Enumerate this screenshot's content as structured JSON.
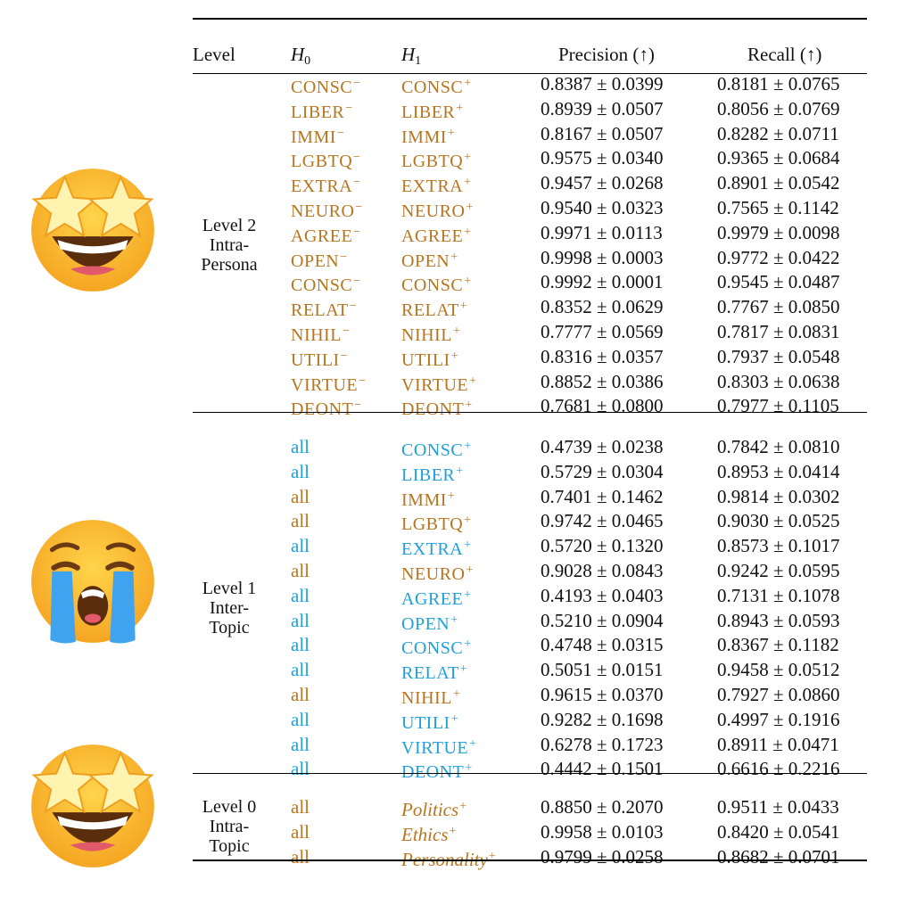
{
  "header": {
    "level": "Level",
    "h0": "H",
    "h0_sub": "0",
    "h1": "H",
    "h1_sub": "1",
    "precision": "Precision (↑)",
    "recall": "Recall (↑)"
  },
  "colors": {
    "brown": "#b8751f",
    "blue": "#1fa0dd"
  },
  "groups": [
    {
      "label_lines": [
        "Level 2",
        "Intra-",
        "Persona"
      ],
      "emoji": "star-struck-emoji",
      "rows": [
        {
          "h0": "CONSC",
          "h0_sup": "−",
          "h0_color": "brown",
          "h1": "CONSC",
          "h1_sup": "+",
          "h1_color": "brown",
          "precision": "0.8387 ± 0.0399",
          "recall": "0.8181 ± 0.0765"
        },
        {
          "h0": "LIBER",
          "h0_sup": "−",
          "h0_color": "brown",
          "h1": "LIBER",
          "h1_sup": "+",
          "h1_color": "brown",
          "precision": "0.8939 ± 0.0507",
          "recall": "0.8056 ± 0.0769"
        },
        {
          "h0": "IMMI",
          "h0_sup": "−",
          "h0_color": "brown",
          "h1": "IMMI",
          "h1_sup": "+",
          "h1_color": "brown",
          "precision": "0.8167 ± 0.0507",
          "recall": "0.8282 ± 0.0711"
        },
        {
          "h0": "LGBTQ",
          "h0_sup": "−",
          "h0_color": "brown",
          "h1": "LGBTQ",
          "h1_sup": "+",
          "h1_color": "brown",
          "precision": "0.9575 ± 0.0340",
          "recall": "0.9365 ± 0.0684"
        },
        {
          "h0": "EXTRA",
          "h0_sup": "−",
          "h0_color": "brown",
          "h1": "EXTRA",
          "h1_sup": "+",
          "h1_color": "brown",
          "precision": "0.9457 ± 0.0268",
          "recall": "0.8901 ± 0.0542"
        },
        {
          "h0": "NEURO",
          "h0_sup": "−",
          "h0_color": "brown",
          "h1": "NEURO",
          "h1_sup": "+",
          "h1_color": "brown",
          "precision": "0.9540 ± 0.0323",
          "recall": "0.7565 ± 0.1142"
        },
        {
          "h0": "AGREE",
          "h0_sup": "−",
          "h0_color": "brown",
          "h1": "AGREE",
          "h1_sup": "+",
          "h1_color": "brown",
          "precision": "0.9971 ± 0.0113",
          "recall": "0.9979 ± 0.0098"
        },
        {
          "h0": "OPEN",
          "h0_sup": "−",
          "h0_color": "brown",
          "h1": "OPEN",
          "h1_sup": "+",
          "h1_color": "brown",
          "precision": "0.9998 ± 0.0003",
          "recall": "0.9772 ± 0.0422"
        },
        {
          "h0": "CONSC",
          "h0_sup": "−",
          "h0_color": "brown",
          "h1": "CONSC",
          "h1_sup": "+",
          "h1_color": "brown",
          "precision": "0.9992 ± 0.0001",
          "recall": "0.9545 ± 0.0487"
        },
        {
          "h0": "RELAT",
          "h0_sup": "−",
          "h0_color": "brown",
          "h1": "RELAT",
          "h1_sup": "+",
          "h1_color": "brown",
          "precision": "0.8352 ± 0.0629",
          "recall": "0.7767 ± 0.0850"
        },
        {
          "h0": "NIHIL",
          "h0_sup": "−",
          "h0_color": "brown",
          "h1": "NIHIL",
          "h1_sup": "+",
          "h1_color": "brown",
          "precision": "0.7777 ± 0.0569",
          "recall": "0.7817 ± 0.0831"
        },
        {
          "h0": "UTILI",
          "h0_sup": "−",
          "h0_color": "brown",
          "h1": "UTILI",
          "h1_sup": "+",
          "h1_color": "brown",
          "precision": "0.8316 ± 0.0357",
          "recall": "0.7937 ± 0.0548"
        },
        {
          "h0": "VIRTUE",
          "h0_sup": "−",
          "h0_color": "brown",
          "h1": "VIRTUE",
          "h1_sup": "+",
          "h1_color": "brown",
          "precision": "0.8852 ± 0.0386",
          "recall": "0.8303 ± 0.0638"
        },
        {
          "h0": "DEONT",
          "h0_sup": "−",
          "h0_color": "brown",
          "h1": "DEONT",
          "h1_sup": "+",
          "h1_color": "brown",
          "precision": "0.7681 ± 0.0800",
          "recall": "0.7977 ± 0.1105"
        }
      ]
    },
    {
      "label_lines": [
        "Level 1",
        "Inter-",
        "Topic"
      ],
      "emoji": "loudly-crying-emoji",
      "rows": [
        {
          "h0": "all",
          "h0_sup": "",
          "h0_color": "blue",
          "h1": "CONSC",
          "h1_sup": "+",
          "h1_color": "blue",
          "precision": "0.4739 ± 0.0238",
          "recall": "0.7842 ± 0.0810"
        },
        {
          "h0": "all",
          "h0_sup": "",
          "h0_color": "blue",
          "h1": "LIBER",
          "h1_sup": "+",
          "h1_color": "blue",
          "precision": "0.5729 ± 0.0304",
          "recall": "0.8953 ± 0.0414"
        },
        {
          "h0": "all",
          "h0_sup": "",
          "h0_color": "brown",
          "h1": "IMMI",
          "h1_sup": "+",
          "h1_color": "brown",
          "precision": "0.7401 ± 0.1462",
          "recall": "0.9814 ± 0.0302"
        },
        {
          "h0": "all",
          "h0_sup": "",
          "h0_color": "brown",
          "h1": "LGBTQ",
          "h1_sup": "+",
          "h1_color": "brown",
          "precision": "0.9742 ± 0.0465",
          "recall": "0.9030 ± 0.0525"
        },
        {
          "h0": "all",
          "h0_sup": "",
          "h0_color": "blue",
          "h1": "EXTRA",
          "h1_sup": "+",
          "h1_color": "blue",
          "precision": "0.5720 ± 0.1320",
          "recall": "0.8573 ± 0.1017"
        },
        {
          "h0": "all",
          "h0_sup": "",
          "h0_color": "brown",
          "h1": "NEURO",
          "h1_sup": "+",
          "h1_color": "brown",
          "precision": "0.9028 ± 0.0843",
          "recall": "0.9242 ± 0.0595"
        },
        {
          "h0": "all",
          "h0_sup": "",
          "h0_color": "blue",
          "h1": "AGREE",
          "h1_sup": "+",
          "h1_color": "blue",
          "precision": "0.4193 ± 0.0403",
          "recall": "0.7131 ± 0.1078"
        },
        {
          "h0": "all",
          "h0_sup": "",
          "h0_color": "blue",
          "h1": "OPEN",
          "h1_sup": "+",
          "h1_color": "blue",
          "precision": "0.5210 ± 0.0904",
          "recall": "0.8943 ± 0.0593"
        },
        {
          "h0": "all",
          "h0_sup": "",
          "h0_color": "blue",
          "h1": "CONSC",
          "h1_sup": "+",
          "h1_color": "blue",
          "precision": "0.4748 ± 0.0315",
          "recall": "0.8367 ± 0.1182"
        },
        {
          "h0": "all",
          "h0_sup": "",
          "h0_color": "blue",
          "h1": "RELAT",
          "h1_sup": "+",
          "h1_color": "blue",
          "precision": "0.5051 ± 0.0151",
          "recall": "0.9458 ± 0.0512"
        },
        {
          "h0": "all",
          "h0_sup": "",
          "h0_color": "brown",
          "h1": "NIHIL",
          "h1_sup": "+",
          "h1_color": "brown",
          "precision": "0.9615 ± 0.0370",
          "recall": "0.7927 ± 0.0860"
        },
        {
          "h0": "all",
          "h0_sup": "",
          "h0_color": "blue",
          "h1": "UTILI",
          "h1_sup": "+",
          "h1_color": "blue",
          "precision": "0.9282 ± 0.1698",
          "recall": "0.4997 ± 0.1916"
        },
        {
          "h0": "all",
          "h0_sup": "",
          "h0_color": "blue",
          "h1": "VIRTUE",
          "h1_sup": "+",
          "h1_color": "blue",
          "precision": "0.6278 ± 0.1723",
          "recall": "0.8911 ± 0.0471"
        },
        {
          "h0": "all",
          "h0_sup": "",
          "h0_color": "blue",
          "h1": "DEONT",
          "h1_sup": "+",
          "h1_color": "blue",
          "precision": "0.4442 ± 0.1501",
          "recall": "0.6616 ± 0.2216"
        }
      ]
    },
    {
      "label_lines": [
        "Level 0",
        "Intra-",
        "Topic"
      ],
      "emoji": "star-struck-emoji",
      "rows": [
        {
          "h0": "all",
          "h0_sup": "",
          "h0_color": "brown",
          "h1": "Politics",
          "h1_sup": "+",
          "h1_color": "brown",
          "h1_italic": true,
          "precision": "0.8850 ± 0.2070",
          "recall": "0.9511 ± 0.0433"
        },
        {
          "h0": "all",
          "h0_sup": "",
          "h0_color": "brown",
          "h1": "Ethics",
          "h1_sup": "+",
          "h1_color": "brown",
          "h1_italic": true,
          "precision": "0.9958 ± 0.0103",
          "recall": "0.8420 ± 0.0541"
        },
        {
          "h0": "all",
          "h0_sup": "",
          "h0_color": "brown",
          "h1": "Personality",
          "h1_sup": "+",
          "h1_color": "brown",
          "h1_italic": true,
          "precision": "0.9799 ± 0.0258",
          "recall": "0.8682 ± 0.0701"
        }
      ]
    }
  ]
}
